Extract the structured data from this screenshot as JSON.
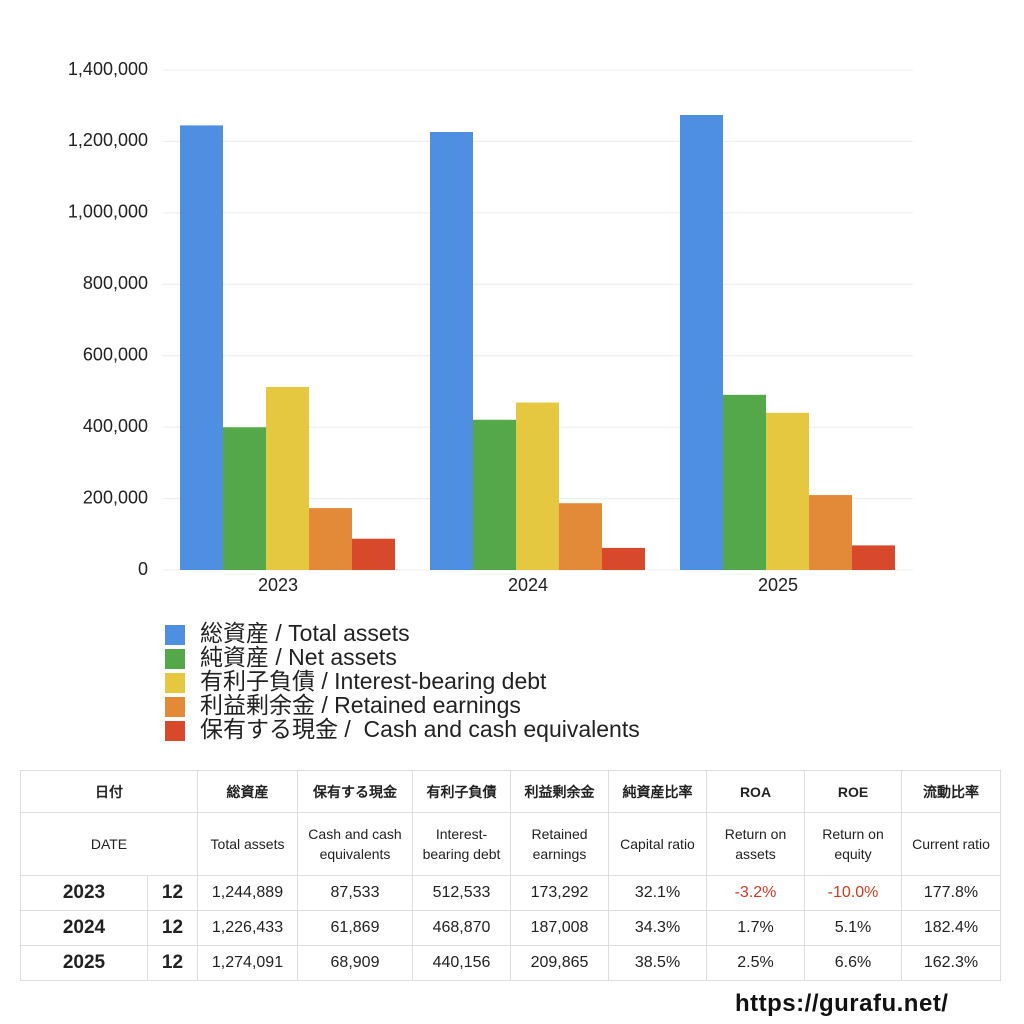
{
  "chart_data": {
    "type": "bar",
    "categories": [
      "2023",
      "2024",
      "2025"
    ],
    "series": [
      {
        "name": "総資産 / Total assets",
        "color": "#4f8fe2",
        "values": [
          1244889,
          1226433,
          1274091
        ]
      },
      {
        "name": "純資産 / Net assets",
        "color": "#55a84a",
        "values": [
          399609,
          420667,
          490525
        ]
      },
      {
        "name": "有利子負債 / Interest-bearing debt",
        "color": "#e6c840",
        "values": [
          512533,
          468870,
          440156
        ]
      },
      {
        "name": "利益剰余金 / Retained earnings",
        "color": "#e38a38",
        "values": [
          173292,
          187008,
          209865
        ]
      },
      {
        "name": "保有する現金 /  Cash and cash equivalents",
        "color": "#d8482a",
        "values": [
          87533,
          61869,
          68909
        ]
      }
    ],
    "ylim": [
      0,
      1400000
    ],
    "yticks": [
      0,
      {
        "value": 200000,
        "label": "200,000"
      },
      {
        "value": 400000,
        "label": "400,000"
      },
      {
        "value": 600000,
        "label": "600,000"
      },
      {
        "value": 800000,
        "label": "800,000"
      },
      {
        "value": 1000000,
        "label": "1,000,000"
      },
      {
        "value": 1200000,
        "label": "1,200,000"
      },
      {
        "value": 1400000,
        "label": "1,400,000"
      }
    ],
    "grid": true
  },
  "table": {
    "header": [
      [
        "日付",
        "総資産",
        "保有する現金",
        "有利子負債",
        "利益剰余金",
        "純資産比率",
        "ROA",
        "ROE",
        "流動比率"
      ],
      [
        "DATE",
        "Total assets",
        "Cash and cash equivalents",
        "Interest-bearing debt",
        "Retained earnings",
        "Capital ratio",
        "Return on assets",
        "Return on equity",
        "Current ratio"
      ]
    ],
    "rows": [
      [
        "2023",
        "12",
        "1,244,889",
        "87,533",
        "512,533",
        "173,292",
        "32.1%",
        "-3.2%",
        "-10.0%",
        "177.8%"
      ],
      [
        "2024",
        "12",
        "1,226,433",
        "61,869",
        "468,870",
        "187,008",
        "34.3%",
        "1.7%",
        "5.1%",
        "182.4%"
      ],
      [
        "2025",
        "12",
        "1,274,091",
        "68,909",
        "440,156",
        "209,865",
        "38.5%",
        "2.5%",
        "6.6%",
        "162.3%"
      ]
    ]
  },
  "footer": "https://gurafu.net/"
}
